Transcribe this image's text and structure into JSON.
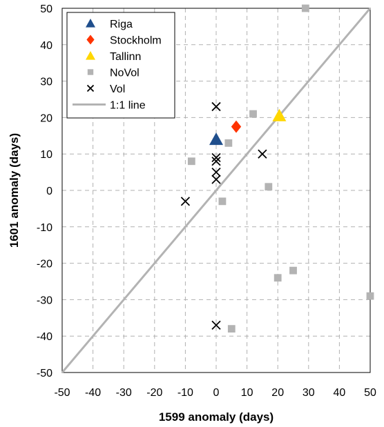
{
  "chart_data": {
    "type": "scatter",
    "xlabel": "1599 anomaly (days)",
    "ylabel": "1601 anomaly (days)",
    "xlim": [
      -50,
      50
    ],
    "ylim": [
      -50,
      50
    ],
    "xticks": [
      -50,
      -40,
      -30,
      -20,
      -10,
      0,
      10,
      20,
      30,
      40,
      50
    ],
    "yticks": [
      -50,
      -40,
      -30,
      -20,
      -10,
      0,
      10,
      20,
      30,
      40,
      50
    ],
    "grid": true,
    "legend_position": "top-left",
    "series": [
      {
        "name": "Riga",
        "marker": "triangle",
        "color": "#1f4e8c",
        "points": [
          [
            0,
            14
          ]
        ]
      },
      {
        "name": "Stockholm",
        "marker": "diamond",
        "color": "#ff3300",
        "points": [
          [
            6.5,
            17.5
          ]
        ]
      },
      {
        "name": "Tallinn",
        "marker": "triangle",
        "color": "#ffd700",
        "points": [
          [
            20.5,
            20.5
          ]
        ]
      },
      {
        "name": "NoVol",
        "marker": "square",
        "color": "#b3b3b3",
        "points": [
          [
            29,
            50
          ],
          [
            12,
            21
          ],
          [
            4,
            13
          ],
          [
            -8,
            8
          ],
          [
            17,
            1
          ],
          [
            2,
            -3
          ],
          [
            25,
            -22
          ],
          [
            20,
            -24
          ],
          [
            50,
            -29
          ],
          [
            5,
            -38
          ]
        ]
      },
      {
        "name": "Vol",
        "marker": "x",
        "color": "#000000",
        "points": [
          [
            0,
            23
          ],
          [
            15,
            10
          ],
          [
            0,
            9
          ],
          [
            0,
            8
          ],
          [
            0,
            5
          ],
          [
            0,
            3
          ],
          [
            -10,
            -3
          ],
          [
            0,
            -37
          ]
        ]
      },
      {
        "name": "1:1 line",
        "marker": "line",
        "color": "#b3b3b3",
        "points": [
          [
            -50,
            -50
          ],
          [
            50,
            50
          ]
        ]
      }
    ]
  }
}
